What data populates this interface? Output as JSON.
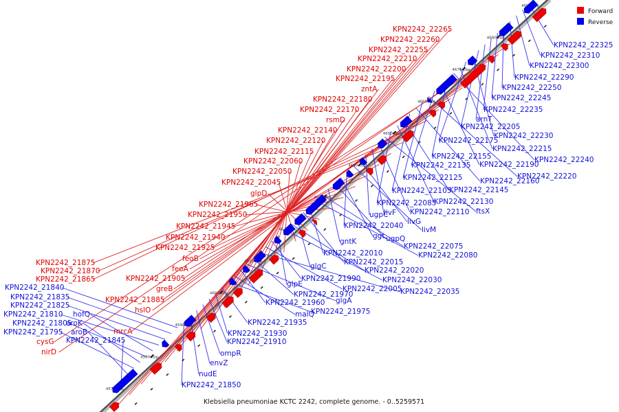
{
  "caption": "Klebsiella pneumoniae KCTC 2242, complete genome. - 0..5259571",
  "legend": {
    "forward_label": "Forward",
    "reverse_label": "Reverse",
    "forward_color": "#ee0000",
    "reverse_color": "#0000ee"
  },
  "scale_ticks": [
    "4570 kbp",
    "4580 kbp",
    "4590 kbp",
    "4600 kbp",
    "4610 kbp",
    "4620 kbp",
    "4630 kbp",
    "4640 kbp",
    "4650 kbp",
    "4660 kbp",
    "4670 kbp",
    "4680 kbp",
    "4690 kbp"
  ],
  "forward_genes": [
    "KPN2242_22265",
    "KPN2242_22260",
    "KPN2242_22255",
    "KPN2242_22210",
    "KPN2242_22200",
    "KPN2242_22195",
    "zntA",
    "KPN2242_22180",
    "KPN2242_22170",
    "rsmD",
    "KPN2242_22140",
    "KPN2242_22120",
    "KPN2242_22115",
    "KPN2242_22060",
    "KPN2242_22050",
    "KPN2242_22045",
    "glpD",
    "KPN2242_21965",
    "KPN2242_21950",
    "KPN2242_21945",
    "KPN2242_21940",
    "KPN2242_21925",
    "feoB",
    "feoA",
    "KPN2242_21875",
    "KPN2242_21870",
    "KPN2242_21865",
    "KPN2242_21905",
    "greB",
    "KPN2242_21885",
    "hslO",
    "mrcA",
    "cysG",
    "nirD"
  ],
  "reverse_genes": [
    "KPN2242_22325",
    "KPN2242_22310",
    "KPN2242_22300",
    "KPN2242_22290",
    "KPN2242_22250",
    "KPN2242_22245",
    "KPN2242_22235",
    "arnT",
    "KPN2242_22205",
    "KPN2242_22230",
    "KPN2242_22175",
    "KPN2242_22215",
    "KPN2242_22240",
    "KPN2242_22155",
    "KPN2242_22190",
    "KPN2242_22135",
    "KPN2242_22220",
    "KPN2242_22125",
    "KPN2242_22160",
    "KPN2242_22105",
    "KPN2242_22145",
    "KPN2242_22130",
    "KPN2242_22085",
    "ftsX",
    "KPN2242_22110",
    "livF",
    "ugpC",
    "livG",
    "livM",
    "KPN2242_22040",
    "ggt",
    "ugpQ",
    "gntK",
    "KPN2242_22075",
    "KPN2242_22080",
    "KPN2242_22010",
    "KPN2242_22015",
    "glgC",
    "KPN2242_22020",
    "KPN2242_22030",
    "glpE",
    "KPN2242_21990",
    "KPN2242_22005",
    "KPN2242_22035",
    "KPN2242_21970",
    "glgA",
    "KPN2242_21960",
    "malQ",
    "KPN2242_21975",
    "KPN2242_21935",
    "KPN2242_21930",
    "KPN2242_21910",
    "ompR",
    "envZ",
    "nudE",
    "KPN2242_21850",
    "KPN2242_21840",
    "KPN2242_21835",
    "KPN2242_21825",
    "KPN2242_21810",
    "hofQ",
    "KPN2242_21805",
    "aroK",
    "KPN2242_21795",
    "aroB",
    "KPN2242_21845"
  ]
}
